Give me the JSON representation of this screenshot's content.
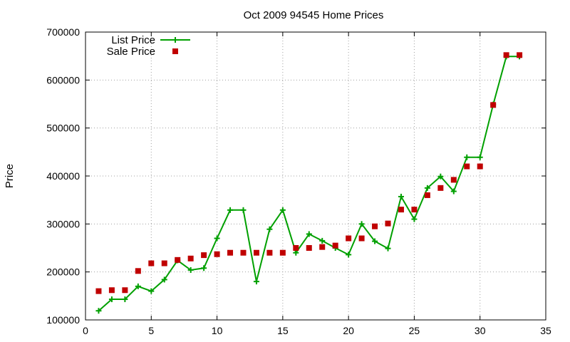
{
  "colors": {
    "list": "#00a000",
    "sale": "#c00000",
    "grid": "#a0a0a0",
    "axis": "#000000"
  },
  "chart_data": {
    "type": "line",
    "title": "Oct 2009 94545 Home Prices",
    "xlabel": "",
    "ylabel": "Price",
    "xlim": [
      0,
      35
    ],
    "ylim": [
      100000,
      700000
    ],
    "xticks": [
      0,
      5,
      10,
      15,
      20,
      25,
      30,
      35
    ],
    "yticks": [
      100000,
      200000,
      300000,
      400000,
      500000,
      600000,
      700000
    ],
    "grid": true,
    "legend_position": "top-left",
    "series": [
      {
        "name": "List Price",
        "style": "line+cross",
        "x": [
          1,
          2,
          3,
          4,
          5,
          6,
          7,
          8,
          9,
          10,
          11,
          12,
          13,
          14,
          15,
          16,
          17,
          18,
          19,
          20,
          21,
          22,
          23,
          24,
          25,
          26,
          27,
          28,
          29,
          30,
          31,
          32,
          33
        ],
        "y": [
          119000,
          143000,
          143000,
          170000,
          160000,
          184000,
          224000,
          204000,
          208000,
          270000,
          329000,
          329000,
          180000,
          289000,
          329000,
          240000,
          279000,
          265000,
          250000,
          236000,
          300000,
          264000,
          249000,
          357000,
          310000,
          375000,
          399000,
          368000,
          439000,
          439000,
          549000,
          649000,
          649000
        ]
      },
      {
        "name": "Sale Price",
        "style": "square",
        "x": [
          1,
          2,
          3,
          4,
          5,
          6,
          7,
          8,
          9,
          10,
          11,
          12,
          13,
          14,
          15,
          16,
          17,
          18,
          19,
          20,
          21,
          22,
          23,
          24,
          25,
          26,
          27,
          28,
          29,
          30,
          31,
          32,
          33
        ],
        "y": [
          160000,
          162000,
          162000,
          202000,
          218000,
          218000,
          225000,
          228000,
          235000,
          237000,
          240000,
          240000,
          240000,
          240000,
          240000,
          250000,
          250000,
          252000,
          255000,
          270000,
          270000,
          295000,
          301000,
          330000,
          330000,
          360000,
          375000,
          392000,
          420000,
          420000,
          548000,
          652000,
          652000
        ]
      }
    ]
  }
}
